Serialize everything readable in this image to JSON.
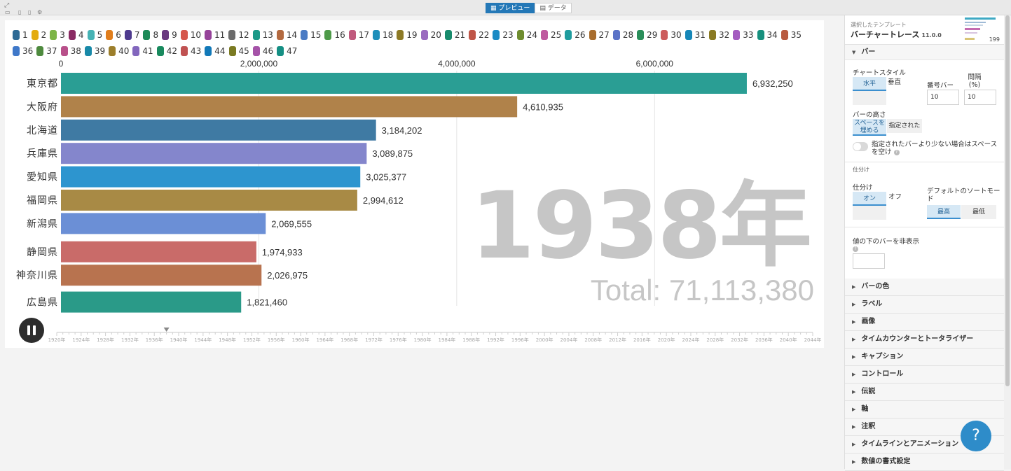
{
  "toolbar": {
    "modes": [
      {
        "label": "プレビュー",
        "active": true
      },
      {
        "label": "データ",
        "active": false
      }
    ]
  },
  "legend": [
    {
      "label": "1",
      "color": "#2d6a95"
    },
    {
      "label": "2",
      "color": "#e3ab10"
    },
    {
      "label": "3",
      "color": "#7db548"
    },
    {
      "label": "4",
      "color": "#8a2b63"
    },
    {
      "label": "5",
      "color": "#46b3b5"
    },
    {
      "label": "6",
      "color": "#e07e1d"
    },
    {
      "label": "7",
      "color": "#4e3a8e"
    },
    {
      "label": "8",
      "color": "#1d8a58"
    },
    {
      "label": "9",
      "color": "#6a3a80"
    },
    {
      "label": "10",
      "color": "#d5574c"
    },
    {
      "label": "11",
      "color": "#96439a"
    },
    {
      "label": "12",
      "color": "#6b6b6b"
    },
    {
      "label": "13",
      "color": "#1b9988"
    },
    {
      "label": "14",
      "color": "#b36a40"
    },
    {
      "label": "15",
      "color": "#4a7bc4"
    },
    {
      "label": "16",
      "color": "#4e9a49"
    },
    {
      "label": "17",
      "color": "#c05a7d"
    },
    {
      "label": "18",
      "color": "#1e8fba"
    },
    {
      "label": "19",
      "color": "#8d7a26"
    },
    {
      "label": "20",
      "color": "#9b6bbf"
    },
    {
      "label": "21",
      "color": "#188b6c"
    },
    {
      "label": "22",
      "color": "#bf5547"
    },
    {
      "label": "23",
      "color": "#1a8ac4"
    },
    {
      "label": "24",
      "color": "#6f8d2f"
    },
    {
      "label": "25",
      "color": "#bf5a9f"
    },
    {
      "label": "26",
      "color": "#1f9c9e"
    },
    {
      "label": "27",
      "color": "#a86d2d"
    },
    {
      "label": "28",
      "color": "#5b73c7"
    },
    {
      "label": "29",
      "color": "#2a8e5a"
    },
    {
      "label": "30",
      "color": "#cc5c5c"
    },
    {
      "label": "31",
      "color": "#1687b8"
    },
    {
      "label": "32",
      "color": "#8a7a22"
    },
    {
      "label": "33",
      "color": "#a45cc0"
    },
    {
      "label": "34",
      "color": "#17907e"
    },
    {
      "label": "35",
      "color": "#b85a3f"
    },
    {
      "label": "36",
      "color": "#3f78c9"
    },
    {
      "label": "37",
      "color": "#4e8a3e"
    },
    {
      "label": "38",
      "color": "#b8508a"
    },
    {
      "label": "39",
      "color": "#1889a8"
    },
    {
      "label": "40",
      "color": "#9c7e2b"
    },
    {
      "label": "41",
      "color": "#8266bd"
    },
    {
      "label": "42",
      "color": "#198a5e"
    },
    {
      "label": "43",
      "color": "#c05252"
    },
    {
      "label": "44",
      "color": "#1279b8"
    },
    {
      "label": "45",
      "color": "#7a7a22"
    },
    {
      "label": "46",
      "color": "#a553a8"
    },
    {
      "label": "47",
      "color": "#158f84"
    }
  ],
  "chart_data": {
    "type": "bar",
    "orientation": "horizontal",
    "categories": [
      "東京都",
      "大阪府",
      "北海道",
      "兵庫県",
      "愛知県",
      "福岡県",
      "新潟県",
      "静岡県",
      "神奈川県",
      "広島県"
    ],
    "values": [
      6932250,
      4610935,
      3184202,
      3089875,
      3025377,
      2994612,
      2069555,
      1974933,
      2026975,
      1821460
    ],
    "value_labels": [
      "6,932,250",
      "4,610,935",
      "3,184,202",
      "3,089,875",
      "3,025,377",
      "2,994,612",
      "2,069,555",
      "1,974,933",
      "2,026,975",
      "1,821,460"
    ],
    "colors": [
      "#2a9e94",
      "#b0824a",
      "#3f7aa3",
      "#8486cc",
      "#2d95cf",
      "#a88a45",
      "#6b8fd6",
      "#c96b69",
      "#b8734f",
      "#2a9a88"
    ],
    "xlim": [
      0,
      7400000
    ],
    "x_ticks": [
      0,
      2000000,
      4000000,
      6000000
    ],
    "x_tick_labels": [
      "0",
      "2,000,000",
      "4,000,000",
      "6,000,000"
    ],
    "grid": true,
    "current_period": "1938年",
    "total_label": "Total: 71,113,380"
  },
  "timeline": {
    "ticks": [
      "1920年",
      "1924年",
      "1928年",
      "1932年",
      "1936年",
      "1940年",
      "1944年",
      "1948年",
      "1952年",
      "1956年",
      "1960年",
      "1964年",
      "1968年",
      "1972年",
      "1976年",
      "1980年",
      "1984年",
      "1988年",
      "1992年",
      "1996年",
      "2000年",
      "2004年",
      "2008年",
      "2012年",
      "2016年",
      "2020年",
      "2024年",
      "2028年",
      "2032年",
      "2036年",
      "2040年",
      "2044年"
    ],
    "start_year": 1920,
    "end_year": 2044,
    "current_year": 1938
  },
  "panel": {
    "template_sub": "選択したテンプレート",
    "template_name": "バーチャートレース",
    "template_version": "11.0.0",
    "thumb_text": "199",
    "bar_section": "バー",
    "chart_style_label": "チャートスタイル",
    "style_horizontal": "水平",
    "style_vertical": "垂直",
    "bar_count_label": "番号バー",
    "bar_count_value": "10",
    "gap_label": "間隔",
    "gap_unit": "(%)",
    "gap_value": "10",
    "bar_height_label": "バーの高さ",
    "fill_space": "スペースを埋める",
    "specified": "指定された",
    "fewer_bars_text": "指定されたバーより少ない場合はスペースを空け",
    "sort_header": "仕分け",
    "sort_label": "仕分け",
    "sort_on": "オン",
    "sort_off": "オフ",
    "default_sort_label": "デフォルトのソートモード",
    "sort_top": "最高",
    "sort_bottom": "最低",
    "hide_below_label": "値の下のバーを非表示",
    "sections": [
      "バーの色",
      "ラベル",
      "画像",
      "タイムカウンターとトータライザー",
      "キャプション",
      "コントロール",
      "伝説",
      "軸",
      "注釈",
      "タイムラインとアニメーション",
      "数値の書式設定"
    ]
  },
  "help": "?"
}
